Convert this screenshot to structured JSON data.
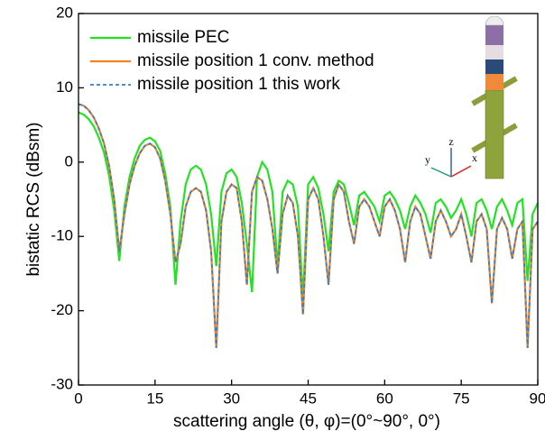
{
  "chart_data": {
    "type": "line",
    "x_label": "scattering angle (θ, φ)=(0°~90°, 0°)",
    "y_label": "bistatic RCS (dBsm)",
    "x": [
      0,
      1,
      2,
      3,
      4,
      5,
      6,
      7,
      8,
      9,
      10,
      11,
      12,
      13,
      14,
      15,
      16,
      17,
      18,
      19,
      20,
      21,
      22,
      23,
      24,
      25,
      26,
      27,
      28,
      29,
      30,
      31,
      32,
      33,
      34,
      35,
      36,
      37,
      38,
      39,
      40,
      41,
      42,
      43,
      44,
      45,
      46,
      47,
      48,
      49,
      50,
      51,
      52,
      53,
      54,
      55,
      56,
      57,
      58,
      59,
      60,
      61,
      62,
      63,
      64,
      65,
      66,
      67,
      68,
      69,
      70,
      71,
      72,
      73,
      74,
      75,
      76,
      77,
      78,
      79,
      80,
      81,
      82,
      83,
      84,
      85,
      86,
      87,
      88,
      89,
      90
    ],
    "series": [
      {
        "name": "missile PEC",
        "color": "#22e322",
        "dashed": false,
        "values": [
          6.7,
          6.4,
          5.8,
          4.8,
          3.3,
          1.3,
          -1.8,
          -6.5,
          -13.3,
          -6,
          -2,
          0.5,
          2.2,
          3.0,
          3.3,
          2.8,
          1.5,
          -1.5,
          -6,
          -16.5,
          -8,
          -3,
          -1,
          -0.5,
          -1,
          -3,
          -7,
          -14,
          -4,
          -1.5,
          -1,
          -2,
          -5.5,
          -11,
          -17.5,
          -2,
          0,
          -1,
          -4,
          -14,
          -4,
          -2.5,
          -3,
          -6,
          -18.5,
          -3,
          -2,
          -3.5,
          -7,
          -12,
          -4,
          -2.5,
          -3,
          -5.5,
          -8.5,
          -4.5,
          -4,
          -5,
          -6,
          -8,
          -4.5,
          -4,
          -5,
          -6.5,
          -9,
          -6,
          -4.5,
          -5.5,
          -7,
          -9.5,
          -5.5,
          -5,
          -6,
          -7.5,
          -6.5,
          -5,
          -7,
          -10,
          -5.5,
          -5,
          -6.5,
          -9,
          -6,
          -5,
          -6.5,
          -8.5,
          -5.5,
          -5,
          -16,
          -7,
          -5.5
        ]
      },
      {
        "name": "missile position 1 conv. method",
        "color": "#f5821f",
        "dashed": false,
        "values": [
          7.8,
          7.6,
          7.0,
          6.0,
          4.5,
          2.5,
          -0.5,
          -5,
          -12,
          -7,
          -3,
          -0.5,
          1.2,
          2.2,
          2.5,
          2.0,
          0.5,
          -2.5,
          -7,
          -13.5,
          -11,
          -6,
          -4,
          -3.5,
          -4,
          -6.5,
          -12,
          -25,
          -8,
          -4,
          -3,
          -3.5,
          -8,
          -16.5,
          -4,
          -2,
          -2.5,
          -5,
          -9,
          -15,
          -7,
          -4.5,
          -5.5,
          -10,
          -20.5,
          -5,
          -3.5,
          -5,
          -10,
          -16.5,
          -5,
          -3,
          -4,
          -8,
          -11,
          -6,
          -5,
          -6,
          -8,
          -10,
          -6,
          -5,
          -6.5,
          -9,
          -13.5,
          -8,
          -6,
          -7,
          -10,
          -13,
          -8,
          -6.5,
          -8,
          -10,
          -9,
          -7,
          -10,
          -13.5,
          -8,
          -7,
          -9,
          -19,
          -9,
          -7.5,
          -9,
          -13,
          -9,
          -8,
          -25,
          -9,
          -8
        ]
      },
      {
        "name": "missile position 1 this work",
        "color": "#3a7dc9",
        "dashed": true,
        "values": [
          7.8,
          7.6,
          7.0,
          6.0,
          4.5,
          2.5,
          -0.5,
          -5,
          -12,
          -7,
          -3,
          -0.5,
          1.2,
          2.2,
          2.5,
          2.0,
          0.5,
          -2.5,
          -7,
          -13.5,
          -11,
          -6,
          -4,
          -3.5,
          -4,
          -6.5,
          -12,
          -25,
          -8,
          -4,
          -3,
          -3.5,
          -8,
          -16.5,
          -4,
          -2,
          -2.5,
          -5,
          -9,
          -15,
          -7,
          -4.5,
          -5.5,
          -10,
          -20.5,
          -5,
          -3.5,
          -5,
          -10,
          -16.5,
          -5,
          -3,
          -4,
          -8,
          -11,
          -6,
          -5,
          -6,
          -8,
          -10,
          -6,
          -5,
          -6.5,
          -9,
          -13.5,
          -8,
          -6,
          -7,
          -10,
          -13,
          -8,
          -6.5,
          -8,
          -10,
          -9,
          -7,
          -10,
          -13.5,
          -8,
          -7,
          -9,
          -19,
          -9,
          -7.5,
          -9,
          -13,
          -9,
          -8,
          -25,
          -9,
          -8
        ]
      }
    ],
    "xlim": [
      0,
      90
    ],
    "xticks": [
      0,
      15,
      30,
      45,
      60,
      75,
      90
    ],
    "ylim": [
      -30,
      20
    ],
    "yticks": [
      -30,
      -20,
      -10,
      0,
      10,
      20
    ],
    "legend": "top-left",
    "inset_axes_labels": [
      "z",
      "y",
      "x"
    ]
  }
}
